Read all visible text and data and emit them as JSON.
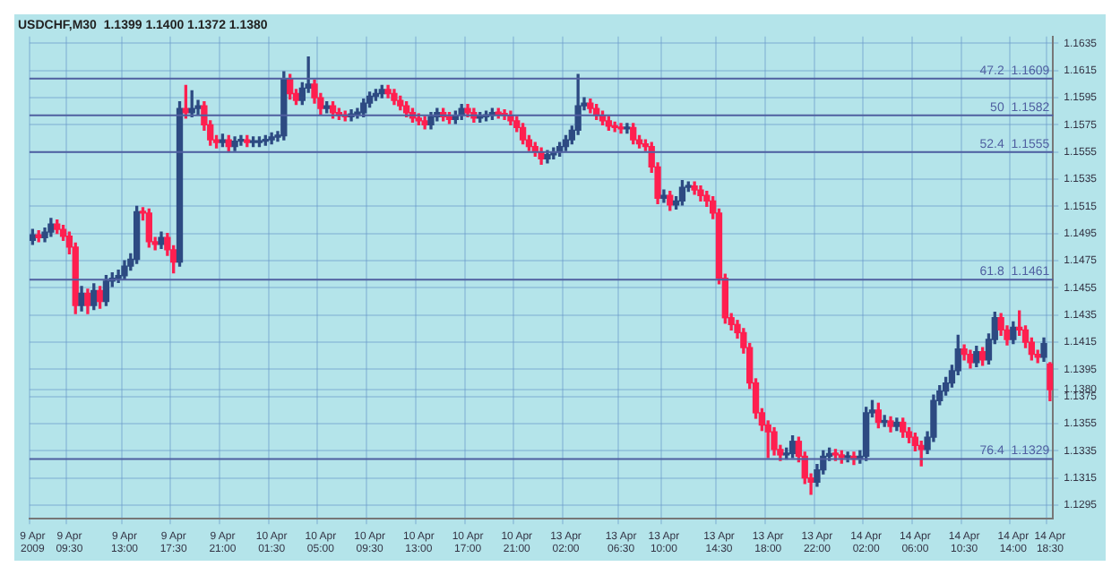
{
  "chart_data": {
    "type": "candlestick",
    "title": "USDCHF,M30  1.1399 1.1400 1.1372 1.1380",
    "categories": [
      "9 Apr 2009",
      null,
      null,
      null,
      null,
      null,
      "9 Apr 09:30",
      null,
      null,
      null,
      null,
      null,
      null,
      null,
      null,
      "9 Apr 13:00",
      null,
      null,
      null,
      null,
      null,
      null,
      null,
      "9 Apr 17:30",
      null,
      null,
      null,
      null,
      null,
      null,
      null,
      "9 Apr 21:00",
      null,
      null,
      null,
      null,
      null,
      null,
      null,
      "10 Apr 01:30",
      null,
      null,
      null,
      null,
      null,
      null,
      null,
      "10 Apr 05:00",
      null,
      null,
      null,
      null,
      null,
      null,
      null,
      "10 Apr 09:30",
      null,
      null,
      null,
      null,
      null,
      null,
      null,
      "10 Apr 13:00",
      null,
      null,
      null,
      null,
      null,
      null,
      null,
      "10 Apr 17:00",
      null,
      null,
      null,
      null,
      null,
      null,
      null,
      "10 Apr 21:00",
      null,
      null,
      null,
      null,
      null,
      null,
      null,
      "13 Apr 02:00",
      null,
      null,
      null,
      null,
      null,
      null,
      null,
      null,
      "13 Apr 06:30",
      null,
      null,
      null,
      null,
      null,
      null,
      "13 Apr 10:00",
      null,
      null,
      null,
      null,
      null,
      null,
      null,
      null,
      "13 Apr 14:30",
      null,
      null,
      null,
      null,
      null,
      null,
      null,
      "13 Apr 18:00",
      null,
      null,
      null,
      null,
      null,
      null,
      null,
      "13 Apr 22:00",
      null,
      null,
      null,
      null,
      null,
      null,
      null,
      "14 Apr 02:00",
      null,
      null,
      null,
      null,
      null,
      null,
      null,
      "14 Apr 06:00",
      null,
      null,
      null,
      null,
      null,
      null,
      null,
      "14 Apr 10:30",
      null,
      null,
      null,
      null,
      null,
      null,
      null,
      "14 Apr 14:00",
      null,
      null,
      null,
      null,
      null,
      "14 Apr 18:30"
    ],
    "ohlc": [
      [
        1.149,
        1.1498,
        1.1487,
        1.1494
      ],
      [
        1.1494,
        1.1497,
        1.1489,
        1.1492
      ],
      [
        1.1492,
        1.1499,
        1.1489,
        1.1496
      ],
      [
        1.1496,
        1.1506,
        1.1493,
        1.1502
      ],
      [
        1.1502,
        1.1505,
        1.1495,
        1.1498
      ],
      [
        1.1498,
        1.1501,
        1.149,
        1.1493
      ],
      [
        1.1493,
        1.1496,
        1.148,
        1.1485
      ],
      [
        1.1485,
        1.1488,
        1.1436,
        1.1442
      ],
      [
        1.1442,
        1.1456,
        1.1438,
        1.1451
      ],
      [
        1.1451,
        1.1454,
        1.1436,
        1.1442
      ],
      [
        1.1442,
        1.1458,
        1.1439,
        1.1453
      ],
      [
        1.1453,
        1.1456,
        1.144,
        1.1445
      ],
      [
        1.1445,
        1.1464,
        1.1442,
        1.146
      ],
      [
        1.146,
        1.1466,
        1.1456,
        1.1462
      ],
      [
        1.1462,
        1.1468,
        1.1459,
        1.1464
      ],
      [
        1.1464,
        1.1475,
        1.1461,
        1.1471
      ],
      [
        1.1471,
        1.148,
        1.1468,
        1.1476
      ],
      [
        1.1476,
        1.1515,
        1.1473,
        1.1511
      ],
      [
        1.1511,
        1.1514,
        1.1505,
        1.151
      ],
      [
        1.151,
        1.1513,
        1.1485,
        1.1489
      ],
      [
        1.1489,
        1.1492,
        1.1483,
        1.1487
      ],
      [
        1.1487,
        1.1496,
        1.1484,
        1.1492
      ],
      [
        1.1492,
        1.1495,
        1.1479,
        1.1483
      ],
      [
        1.1483,
        1.1486,
        1.1466,
        1.1474
      ],
      [
        1.1474,
        1.1592,
        1.1471,
        1.1587
      ],
      [
        1.1587,
        1.1604,
        1.158,
        1.1584
      ],
      [
        1.1584,
        1.16,
        1.1581,
        1.1587
      ],
      [
        1.1587,
        1.1593,
        1.1583,
        1.1589
      ],
      [
        1.1589,
        1.1592,
        1.1571,
        1.1575
      ],
      [
        1.1575,
        1.1578,
        1.156,
        1.1564
      ],
      [
        1.1564,
        1.1567,
        1.1558,
        1.1562
      ],
      [
        1.1562,
        1.1568,
        1.1559,
        1.1564
      ],
      [
        1.1564,
        1.1567,
        1.1555,
        1.1559
      ],
      [
        1.1559,
        1.1566,
        1.1556,
        1.1563
      ],
      [
        1.1563,
        1.1567,
        1.156,
        1.1564
      ],
      [
        1.1564,
        1.1567,
        1.1559,
        1.1562
      ],
      [
        1.1562,
        1.1566,
        1.1559,
        1.1562
      ],
      [
        1.1562,
        1.1566,
        1.1559,
        1.1563
      ],
      [
        1.1563,
        1.1567,
        1.156,
        1.1564
      ],
      [
        1.1564,
        1.1569,
        1.1561,
        1.1566
      ],
      [
        1.1566,
        1.157,
        1.1563,
        1.1567
      ],
      [
        1.1567,
        1.1614,
        1.1564,
        1.1609
      ],
      [
        1.1609,
        1.1612,
        1.1594,
        1.1598
      ],
      [
        1.1598,
        1.1601,
        1.159,
        1.1593
      ],
      [
        1.1593,
        1.1606,
        1.159,
        1.1602
      ],
      [
        1.1602,
        1.1625,
        1.1599,
        1.1605
      ],
      [
        1.1605,
        1.1608,
        1.1591,
        1.1595
      ],
      [
        1.1595,
        1.1598,
        1.1583,
        1.1587
      ],
      [
        1.1587,
        1.1592,
        1.1584,
        1.1589
      ],
      [
        1.1589,
        1.1592,
        1.158,
        1.1584
      ],
      [
        1.1584,
        1.1587,
        1.1579,
        1.1582
      ],
      [
        1.1582,
        1.1585,
        1.1578,
        1.1581
      ],
      [
        1.1581,
        1.1586,
        1.1578,
        1.1583
      ],
      [
        1.1583,
        1.1587,
        1.158,
        1.1584
      ],
      [
        1.1584,
        1.1594,
        1.1581,
        1.1591
      ],
      [
        1.1591,
        1.1599,
        1.1588,
        1.1596
      ],
      [
        1.1596,
        1.1601,
        1.1593,
        1.1598
      ],
      [
        1.1598,
        1.1604,
        1.1595,
        1.1601
      ],
      [
        1.1601,
        1.1604,
        1.1595,
        1.1598
      ],
      [
        1.1598,
        1.1601,
        1.159,
        1.1593
      ],
      [
        1.1593,
        1.1596,
        1.1586,
        1.1589
      ],
      [
        1.1589,
        1.1592,
        1.1581,
        1.1584
      ],
      [
        1.1584,
        1.1587,
        1.1577,
        1.158
      ],
      [
        1.158,
        1.1583,
        1.1575,
        1.1578
      ],
      [
        1.1578,
        1.1581,
        1.1572,
        1.1575
      ],
      [
        1.1575,
        1.1584,
        1.1572,
        1.1581
      ],
      [
        1.1581,
        1.1587,
        1.1578,
        1.1584
      ],
      [
        1.1584,
        1.1587,
        1.1578,
        1.1581
      ],
      [
        1.1581,
        1.1584,
        1.1576,
        1.1579
      ],
      [
        1.1579,
        1.1585,
        1.1576,
        1.1582
      ],
      [
        1.1582,
        1.159,
        1.1579,
        1.1587
      ],
      [
        1.1587,
        1.159,
        1.1581,
        1.1584
      ],
      [
        1.1584,
        1.1587,
        1.1577,
        1.158
      ],
      [
        1.158,
        1.1584,
        1.1577,
        1.1581
      ],
      [
        1.1581,
        1.1585,
        1.1578,
        1.1582
      ],
      [
        1.1582,
        1.1587,
        1.1579,
        1.1584
      ],
      [
        1.1584,
        1.1587,
        1.158,
        1.1583
      ],
      [
        1.1583,
        1.1586,
        1.1579,
        1.1582
      ],
      [
        1.1582,
        1.1585,
        1.1575,
        1.1578
      ],
      [
        1.1578,
        1.1581,
        1.157,
        1.1573
      ],
      [
        1.1573,
        1.1576,
        1.1561,
        1.1564
      ],
      [
        1.1564,
        1.1567,
        1.1556,
        1.1559
      ],
      [
        1.1559,
        1.1562,
        1.1552,
        1.1555
      ],
      [
        1.1555,
        1.1558,
        1.1546,
        1.155
      ],
      [
        1.155,
        1.1556,
        1.1547,
        1.1553
      ],
      [
        1.1553,
        1.1558,
        1.155,
        1.1555
      ],
      [
        1.1555,
        1.1562,
        1.1552,
        1.1559
      ],
      [
        1.1559,
        1.1567,
        1.1556,
        1.1564
      ],
      [
        1.1564,
        1.1574,
        1.1561,
        1.1571
      ],
      [
        1.1571,
        1.1612,
        1.1568,
        1.1589
      ],
      [
        1.1589,
        1.1595,
        1.1586,
        1.1591
      ],
      [
        1.1591,
        1.1594,
        1.1584,
        1.1587
      ],
      [
        1.1587,
        1.159,
        1.1579,
        1.1582
      ],
      [
        1.1582,
        1.1585,
        1.1575,
        1.1578
      ],
      [
        1.1578,
        1.1581,
        1.1571,
        1.1574
      ],
      [
        1.1574,
        1.1577,
        1.157,
        1.1573
      ],
      [
        1.1573,
        1.1576,
        1.1569,
        1.1572
      ],
      [
        1.1572,
        1.1576,
        1.1569,
        1.1573
      ],
      [
        1.1573,
        1.1576,
        1.1561,
        1.1564
      ],
      [
        1.1564,
        1.1567,
        1.1558,
        1.1561
      ],
      [
        1.1561,
        1.1564,
        1.1556,
        1.1559
      ],
      [
        1.1559,
        1.1562,
        1.154,
        1.1544
      ],
      [
        1.1544,
        1.1547,
        1.1517,
        1.1521
      ],
      [
        1.1521,
        1.1527,
        1.1518,
        1.1523
      ],
      [
        1.1523,
        1.1526,
        1.1512,
        1.1516
      ],
      [
        1.1516,
        1.1522,
        1.1513,
        1.1519
      ],
      [
        1.1519,
        1.1534,
        1.1516,
        1.1529
      ],
      [
        1.1529,
        1.1533,
        1.1526,
        1.153
      ],
      [
        1.153,
        1.1533,
        1.1524,
        1.1527
      ],
      [
        1.1527,
        1.153,
        1.1519,
        1.1523
      ],
      [
        1.1523,
        1.1526,
        1.1515,
        1.1519
      ],
      [
        1.1519,
        1.1522,
        1.1506,
        1.151
      ],
      [
        1.151,
        1.1513,
        1.1458,
        1.1462
      ],
      [
        1.1462,
        1.1465,
        1.1429,
        1.1433
      ],
      [
        1.1433,
        1.1436,
        1.1424,
        1.1428
      ],
      [
        1.1428,
        1.1431,
        1.1418,
        1.1422
      ],
      [
        1.1422,
        1.1425,
        1.1407,
        1.1411
      ],
      [
        1.1411,
        1.1414,
        1.1381,
        1.1385
      ],
      [
        1.1385,
        1.1388,
        1.1359,
        1.1363
      ],
      [
        1.1363,
        1.1366,
        1.135,
        1.1354
      ],
      [
        1.1354,
        1.1357,
        1.133,
        1.1349
      ],
      [
        1.1349,
        1.1352,
        1.1332,
        1.1336
      ],
      [
        1.1336,
        1.1339,
        1.1328,
        1.1332
      ],
      [
        1.1332,
        1.1337,
        1.1329,
        1.1333
      ],
      [
        1.1333,
        1.1346,
        1.133,
        1.1342
      ],
      [
        1.1342,
        1.1345,
        1.1327,
        1.1331
      ],
      [
        1.1331,
        1.1334,
        1.1311,
        1.1315
      ],
      [
        1.1315,
        1.1318,
        1.1303,
        1.1312
      ],
      [
        1.1312,
        1.1325,
        1.1309,
        1.1321
      ],
      [
        1.1321,
        1.1335,
        1.1318,
        1.1331
      ],
      [
        1.1331,
        1.1337,
        1.1328,
        1.1333
      ],
      [
        1.1333,
        1.1336,
        1.1328,
        1.1332
      ],
      [
        1.1332,
        1.1335,
        1.1326,
        1.133
      ],
      [
        1.133,
        1.1334,
        1.1327,
        1.1331
      ],
      [
        1.1331,
        1.1334,
        1.1325,
        1.1329
      ],
      [
        1.1329,
        1.1335,
        1.1326,
        1.1331
      ],
      [
        1.1331,
        1.1367,
        1.1328,
        1.1363
      ],
      [
        1.1363,
        1.1372,
        1.136,
        1.1365
      ],
      [
        1.1365,
        1.137,
        1.1352,
        1.1356
      ],
      [
        1.1356,
        1.1361,
        1.1353,
        1.1357
      ],
      [
        1.1357,
        1.136,
        1.1349,
        1.1353
      ],
      [
        1.1353,
        1.1359,
        1.135,
        1.1356
      ],
      [
        1.1356,
        1.1359,
        1.1345,
        1.1349
      ],
      [
        1.1349,
        1.1352,
        1.1341,
        1.1345
      ],
      [
        1.1345,
        1.1348,
        1.1335,
        1.1339
      ],
      [
        1.1339,
        1.1342,
        1.1324,
        1.1336
      ],
      [
        1.1336,
        1.1349,
        1.1333,
        1.1345
      ],
      [
        1.1345,
        1.1376,
        1.1342,
        1.1372
      ],
      [
        1.1372,
        1.1383,
        1.1369,
        1.1379
      ],
      [
        1.1379,
        1.1389,
        1.1376,
        1.1385
      ],
      [
        1.1385,
        1.1398,
        1.1382,
        1.1394
      ],
      [
        1.1394,
        1.142,
        1.1391,
        1.141
      ],
      [
        1.141,
        1.1413,
        1.1402,
        1.1406
      ],
      [
        1.1406,
        1.1409,
        1.1396,
        1.14
      ],
      [
        1.14,
        1.1412,
        1.1397,
        1.1408
      ],
      [
        1.1408,
        1.1411,
        1.1398,
        1.1402
      ],
      [
        1.1402,
        1.1421,
        1.1399,
        1.1417
      ],
      [
        1.1417,
        1.1437,
        1.1414,
        1.1433
      ],
      [
        1.1433,
        1.1436,
        1.142,
        1.1424
      ],
      [
        1.1424,
        1.1427,
        1.1413,
        1.1417
      ],
      [
        1.1417,
        1.143,
        1.1414,
        1.1426
      ],
      [
        1.1426,
        1.1438,
        1.142,
        1.1424
      ],
      [
        1.1424,
        1.1427,
        1.1411,
        1.1415
      ],
      [
        1.1415,
        1.1418,
        1.1402,
        1.1406
      ],
      [
        1.1406,
        1.1409,
        1.14,
        1.1404
      ],
      [
        1.1404,
        1.1418,
        1.1401,
        1.1414
      ],
      [
        1.1399,
        1.14,
        1.1372,
        1.138
      ]
    ],
    "ylim": [
      1.1285,
      1.164
    ],
    "yticks": [
      1.1295,
      1.1315,
      1.1335,
      1.1355,
      1.1375,
      {
        "value": 1.138,
        "label": "1.1380"
      },
      1.1395,
      1.1415,
      1.1435,
      1.1455,
      1.1475,
      1.1495,
      1.1515,
      1.1535,
      1.1555,
      1.1575,
      1.1595,
      1.1615,
      1.1635
    ],
    "ref_lines": [
      {
        "axis": "y",
        "value": 1.1609,
        "label": "47.2  1.1609",
        "color": "#4f5fa0"
      },
      {
        "axis": "y",
        "value": 1.1582,
        "label": "50  1.1582",
        "color": "#4f5fa0"
      },
      {
        "axis": "y",
        "value": 1.1555,
        "label": "52.4  1.1555",
        "color": "#4f5fa0"
      },
      {
        "axis": "y",
        "value": 1.1461,
        "label": "61.8  1.1461",
        "color": "#4f5fa0"
      },
      {
        "axis": "y",
        "value": 1.1329,
        "label": "76.4  1.1329",
        "color": "#4f5fa0"
      }
    ],
    "grid": true
  }
}
